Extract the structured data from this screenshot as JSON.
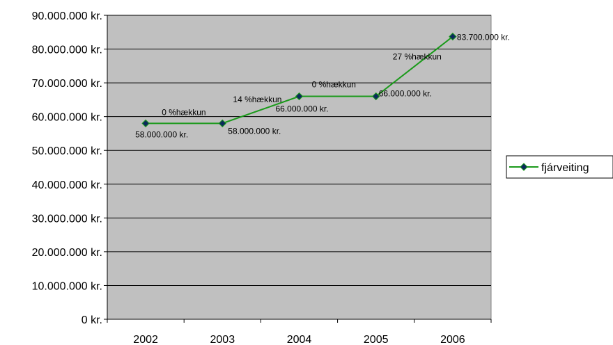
{
  "chart_data": {
    "type": "line",
    "title": "",
    "xlabel": "",
    "ylabel": "",
    "categories": [
      "2002",
      "2003",
      "2004",
      "2005",
      "2006"
    ],
    "series": [
      {
        "name": "fjárveiting",
        "values": [
          58000000,
          58000000,
          66000000,
          66000000,
          83700000
        ],
        "color": "#1a9a1a",
        "marker_color": "#0b2a5c"
      }
    ],
    "data_labels": [
      "58.000.000 kr.",
      "58.000.000 kr.",
      "66.000.000 kr.",
      "66.000.000 kr.",
      "83.700.000 kr."
    ],
    "annotations": [
      "0 %hækkun",
      "14 %hækkun",
      "0 %hækkun",
      "27 %hækkun"
    ],
    "ylim": [
      0,
      90000000
    ],
    "yticks": [
      0,
      10000000,
      20000000,
      30000000,
      40000000,
      50000000,
      60000000,
      70000000,
      80000000,
      90000000
    ],
    "ytick_labels": [
      "0 kr.",
      "10.000.000 kr.",
      "20.000.000 kr.",
      "30.000.000 kr.",
      "40.000.000 kr.",
      "50.000.000 kr.",
      "60.000.000 kr.",
      "70.000.000 kr.",
      "80.000.000 kr.",
      "90.000.000 kr."
    ],
    "grid": true,
    "plot_background": "#c0c0c0",
    "legend_position": "right"
  }
}
